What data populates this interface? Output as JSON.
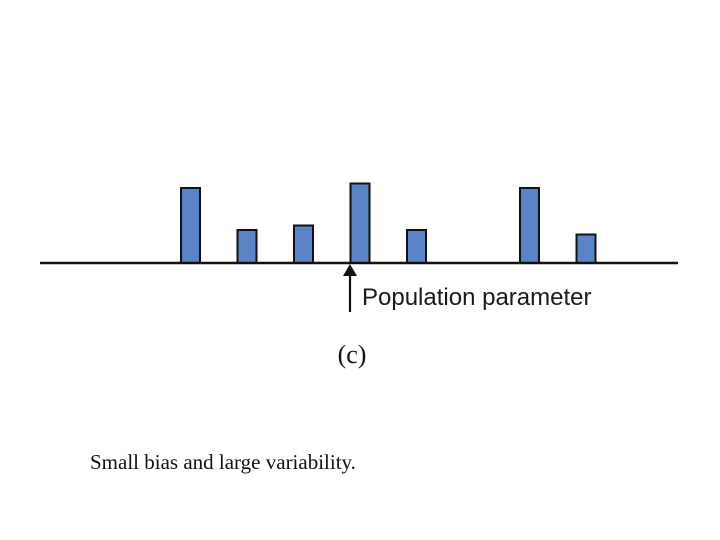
{
  "figure": {
    "marker_label": "Population parameter",
    "panel_label": "(c)",
    "caption": "Small bias and large variability."
  },
  "colors": {
    "bar_fill": "#5b84c8",
    "bar_stroke": "#111111",
    "axis": "#111111"
  },
  "chart_data": {
    "type": "bar",
    "parameter_x": 0,
    "bars": [
      {
        "x": -3,
        "height": 5
      },
      {
        "x": -2,
        "height": 2.2
      },
      {
        "x": -1,
        "height": 2.5
      },
      {
        "x": 0,
        "height": 5.3
      },
      {
        "x": 1,
        "height": 2.2
      },
      {
        "x": 3,
        "height": 5
      },
      {
        "x": 4,
        "height": 1.9
      }
    ]
  }
}
